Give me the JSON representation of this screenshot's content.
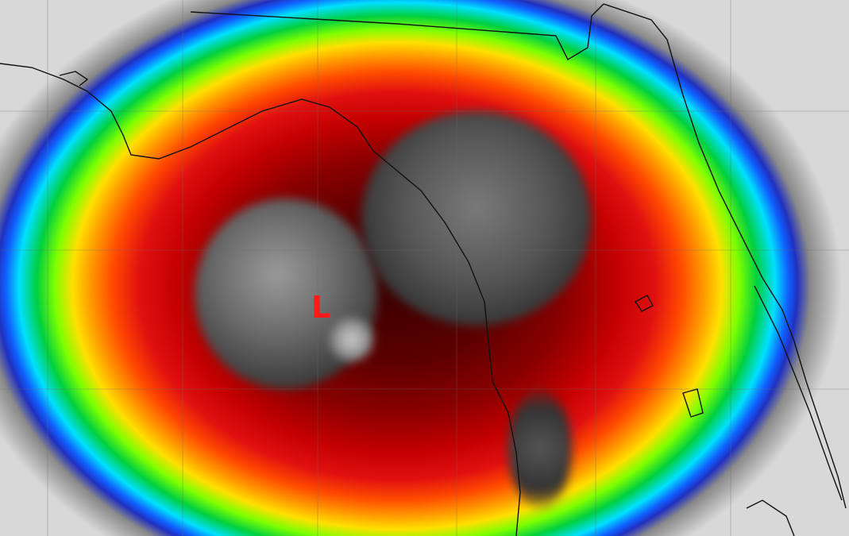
{
  "image": {
    "kind": "enhanced infrared satellite image",
    "low_center_marker": "L",
    "marker_color": "#ff1a1a",
    "palette": [
      "#3a0000",
      "#c40000",
      "#ff4a00",
      "#ffe000",
      "#7dff00",
      "#00e0ff",
      "#1060ff",
      "#d8d8d8"
    ]
  }
}
